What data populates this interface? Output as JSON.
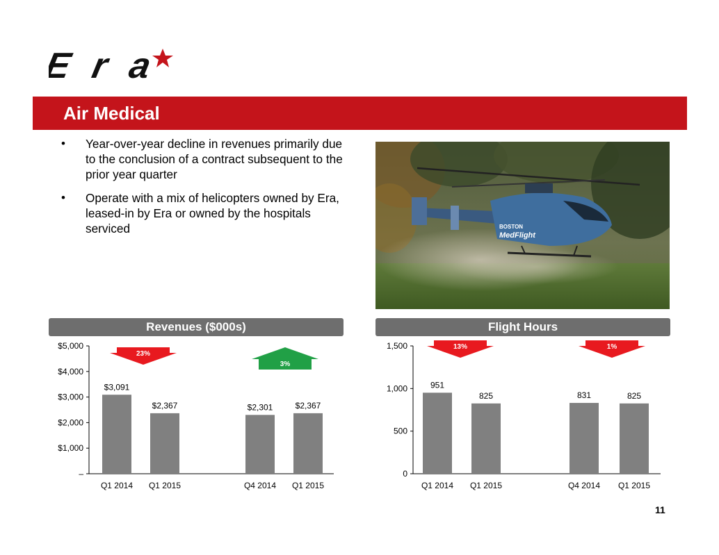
{
  "slide": {
    "title": "Air Medical",
    "page_number": "11",
    "logo_text": "Era",
    "bullets": [
      "Year-over-year decline in revenues primarily due to the conclusion of a contract subsequent to the prior year quarter",
      "Operate with a mix of helicopters owned by Era, leased-in by Era or owned by the hospitals serviced"
    ],
    "helicopter_text": [
      "BOSTON",
      "MedFlight"
    ]
  },
  "colors": {
    "brand_red": "#c4141b",
    "bar_gray": "#808080",
    "header_gray": "#6e6e6e",
    "down_arrow_red": "#e8191f",
    "up_arrow_green": "#21a046"
  },
  "chart_data": [
    {
      "type": "bar",
      "title": "Revenues ($000s)",
      "categories": [
        "Q1 2014",
        "Q1 2015",
        "Q4 2014",
        "Q1 2015"
      ],
      "values": [
        3091,
        2367,
        2301,
        2367
      ],
      "data_labels": [
        "$3,091",
        "$2,367",
        "$2,301",
        "$2,367"
      ],
      "ylim": [
        0,
        5000
      ],
      "yticks": [
        0,
        1000,
        2000,
        3000,
        4000,
        5000
      ],
      "ytick_labels": [
        "–",
        "$1,000",
        "$2,000",
        "$3,000",
        "$4,000",
        "$5,000"
      ],
      "grid": false,
      "annotations": [
        {
          "text": "23%",
          "direction": "down",
          "color": "#e8191f"
        },
        {
          "text": "3%",
          "direction": "up",
          "color": "#21a046"
        }
      ]
    },
    {
      "type": "bar",
      "title": "Flight Hours",
      "categories": [
        "Q1 2014",
        "Q1 2015",
        "Q4 2014",
        "Q1 2015"
      ],
      "values": [
        951,
        825,
        831,
        825
      ],
      "data_labels": [
        "951",
        "825",
        "831",
        "825"
      ],
      "ylim": [
        0,
        1500
      ],
      "yticks": [
        0,
        500,
        1000,
        1500
      ],
      "ytick_labels": [
        "0",
        "500",
        "1,000",
        "1,500"
      ],
      "grid": false,
      "annotations": [
        {
          "text": "13%",
          "direction": "down",
          "color": "#e8191f"
        },
        {
          "text": "1%",
          "direction": "down",
          "color": "#e8191f"
        }
      ]
    }
  ]
}
